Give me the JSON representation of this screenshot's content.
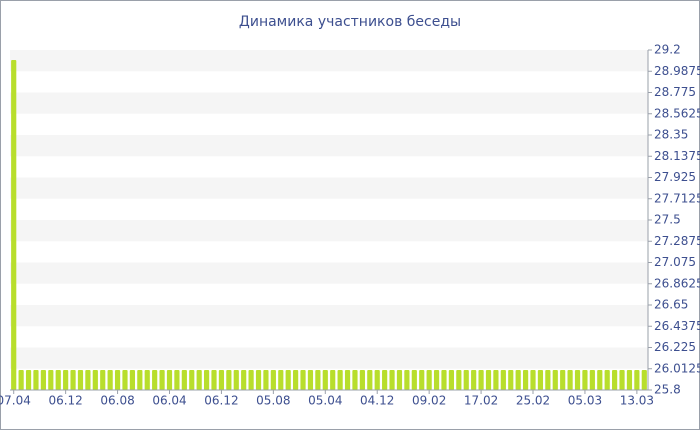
{
  "chart_data": {
    "type": "bar",
    "title": "Динамика участников беседы",
    "categories": [
      "07.04",
      null,
      null,
      null,
      null,
      null,
      null,
      "06.12",
      null,
      null,
      null,
      null,
      null,
      null,
      "06.08",
      null,
      null,
      null,
      null,
      null,
      null,
      "06.04",
      null,
      null,
      null,
      null,
      null,
      null,
      "06.12",
      null,
      null,
      null,
      null,
      null,
      null,
      "05.08",
      null,
      null,
      null,
      null,
      null,
      null,
      "05.04",
      null,
      null,
      null,
      null,
      null,
      null,
      "04.12",
      null,
      null,
      null,
      null,
      null,
      null,
      "09.02",
      null,
      null,
      null,
      null,
      null,
      null,
      "17.02",
      null,
      null,
      null,
      null,
      null,
      null,
      "25.02",
      null,
      null,
      null,
      null,
      null,
      null,
      "05.03",
      null,
      null,
      null,
      null,
      null,
      null,
      "13.03",
      null
    ],
    "values": [
      29.1,
      26,
      26,
      26,
      26,
      26,
      26,
      26,
      26,
      26,
      26,
      26,
      26,
      26,
      26,
      26,
      26,
      26,
      26,
      26,
      26,
      26,
      26,
      26,
      26,
      26,
      26,
      26,
      26,
      26,
      26,
      26,
      26,
      26,
      26,
      26,
      26,
      26,
      26,
      26,
      26,
      26,
      26,
      26,
      26,
      26,
      26,
      26,
      26,
      26,
      26,
      26,
      26,
      26,
      26,
      26,
      26,
      26,
      26,
      26,
      26,
      26,
      26,
      26,
      26,
      26,
      26,
      26,
      26,
      26,
      26,
      26,
      26,
      26,
      26,
      26,
      26,
      26,
      26,
      26,
      26,
      26,
      26,
      26,
      26,
      26
    ],
    "color": "#b8de2c",
    "ylim": [
      25.8,
      29.2
    ],
    "yticks": [
      25.8,
      26.0125,
      26.225,
      26.4375,
      26.65,
      26.8625,
      27.075,
      27.2875,
      27.5,
      27.7125,
      27.925,
      28.1375,
      28.35,
      28.5625,
      28.775,
      28.9875,
      29.2
    ],
    "grid": true
  }
}
